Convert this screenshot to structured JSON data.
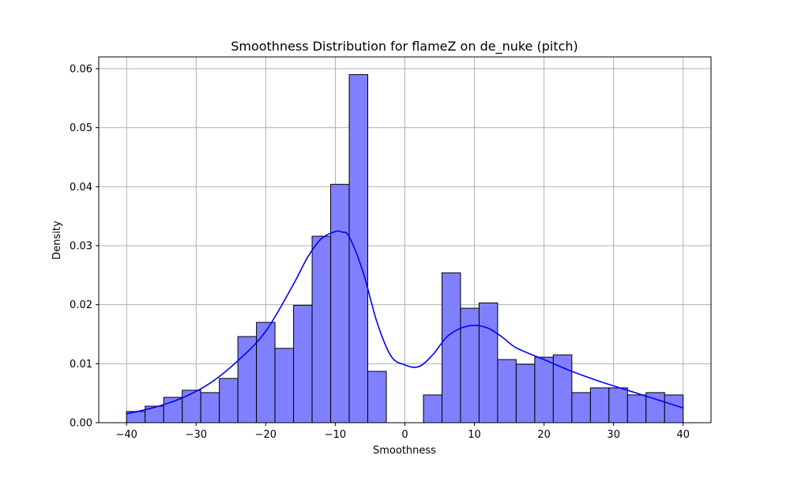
{
  "chart_data": {
    "type": "bar",
    "title": "Smoothness Distribution for flameZ on de_nuke (pitch)",
    "xlabel": "Smoothness",
    "ylabel": "Density",
    "xlim": [
      -44,
      44
    ],
    "ylim": [
      0,
      0.062
    ],
    "xticks": [
      -40,
      -30,
      -20,
      -10,
      0,
      10,
      20,
      30,
      40
    ],
    "xtick_labels": [
      "−40",
      "−30",
      "−20",
      "−10",
      "0",
      "10",
      "20",
      "30",
      "40"
    ],
    "yticks": [
      0,
      0.01,
      0.02,
      0.03,
      0.04,
      0.05,
      0.06
    ],
    "ytick_labels": [
      "0.00",
      "0.01",
      "0.02",
      "0.03",
      "0.04",
      "0.05",
      "0.06"
    ],
    "grid": true,
    "bin_edges": [
      -40,
      -37.333,
      -34.667,
      -32,
      -29.333,
      -26.667,
      -24,
      -21.333,
      -18.667,
      -16,
      -13.333,
      -10.667,
      -8,
      -5.333,
      -2.667,
      0,
      2.667,
      5.333,
      8,
      10.667,
      13.333,
      16,
      18.667,
      21.333,
      24,
      26.667,
      29.333,
      32,
      34.667,
      37.333,
      40
    ],
    "values": [
      0.0019,
      0.0028,
      0.0043,
      0.0055,
      0.0051,
      0.0075,
      0.0146,
      0.017,
      0.0126,
      0.0199,
      0.0316,
      0.0404,
      0.059,
      0.0087,
      0,
      0,
      0.0047,
      0.0254,
      0.0194,
      0.0203,
      0.0107,
      0.0099,
      0.0111,
      0.0115,
      0.0051,
      0.0059,
      0.0059,
      0.0047,
      0.0051,
      0.0047
    ],
    "kde": {
      "x": [
        -40,
        -36,
        -32,
        -28,
        -24,
        -20,
        -16,
        -14,
        -12,
        -10,
        -9,
        -8,
        -6,
        -4,
        -2,
        0,
        2,
        4,
        6,
        8,
        10,
        12,
        14,
        16,
        20,
        24,
        28,
        32,
        36,
        40
      ],
      "y": [
        0.0015,
        0.0026,
        0.0042,
        0.0067,
        0.0105,
        0.0155,
        0.0235,
        0.028,
        0.0312,
        0.0324,
        0.0323,
        0.0315,
        0.0255,
        0.017,
        0.0113,
        0.0098,
        0.0095,
        0.0115,
        0.0145,
        0.016,
        0.0165,
        0.016,
        0.0145,
        0.0127,
        0.0107,
        0.0087,
        0.007,
        0.0055,
        0.004,
        0.0025
      ]
    },
    "colors": {
      "bar_fill": "#8080ff",
      "bar_edge": "#000000",
      "kde_line": "#0000ff",
      "grid": "#b0b0b0"
    }
  }
}
